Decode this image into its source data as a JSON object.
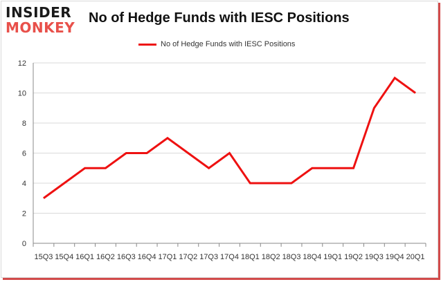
{
  "brand": {
    "line1": "INSIDER",
    "line2": "MONKEY"
  },
  "chart_data": {
    "type": "line",
    "title": "No of Hedge Funds with IESC Positions",
    "xlabel": "",
    "ylabel": "",
    "categories": [
      "15Q3",
      "15Q4",
      "16Q1",
      "16Q2",
      "16Q3",
      "16Q4",
      "17Q1",
      "17Q2",
      "17Q3",
      "17Q4",
      "18Q1",
      "18Q2",
      "18Q3",
      "18Q4",
      "19Q1",
      "19Q2",
      "19Q3",
      "19Q4",
      "20Q1"
    ],
    "series": [
      {
        "name": "No of Hedge Funds with IESC Positions",
        "values": [
          3,
          4,
          5,
          5,
          6,
          6,
          7,
          6,
          5,
          6,
          4,
          4,
          4,
          5,
          5,
          5,
          9,
          11,
          10
        ]
      }
    ],
    "ylim": [
      0,
      12
    ],
    "yticks": [
      0,
      2,
      4,
      6,
      8,
      10,
      12
    ],
    "grid": true,
    "legend_position": "top-center",
    "colors": {
      "line": "#ee1111",
      "grid": "#d9d9d9",
      "axis": "#888888"
    }
  }
}
